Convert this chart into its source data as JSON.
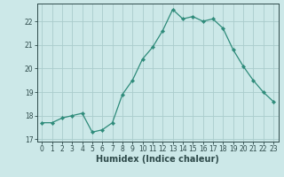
{
  "x": [
    0,
    1,
    2,
    3,
    4,
    5,
    6,
    7,
    8,
    9,
    10,
    11,
    12,
    13,
    14,
    15,
    16,
    17,
    18,
    19,
    20,
    21,
    22,
    23
  ],
  "y": [
    17.7,
    17.7,
    17.9,
    18.0,
    18.1,
    17.3,
    17.4,
    17.7,
    18.9,
    19.5,
    20.4,
    20.9,
    21.6,
    22.5,
    22.1,
    22.2,
    22.0,
    22.1,
    21.7,
    20.8,
    20.1,
    19.5,
    19.0,
    18.6
  ],
  "line_color": "#2e8b7a",
  "marker": "D",
  "marker_size": 2.2,
  "bg_color": "#cce8e8",
  "grid_color": "#aacccc",
  "xlabel": "Humidex (Indice chaleur)",
  "xlim": [
    -0.5,
    23.5
  ],
  "ylim": [
    16.9,
    22.75
  ],
  "yticks": [
    17,
    18,
    19,
    20,
    21,
    22
  ],
  "xticks": [
    0,
    1,
    2,
    3,
    4,
    5,
    6,
    7,
    8,
    9,
    10,
    11,
    12,
    13,
    14,
    15,
    16,
    17,
    18,
    19,
    20,
    21,
    22,
    23
  ],
  "tick_fontsize": 5.5,
  "xlabel_fontsize": 7.0,
  "label_color": "#2e4a4a",
  "linewidth": 0.9
}
